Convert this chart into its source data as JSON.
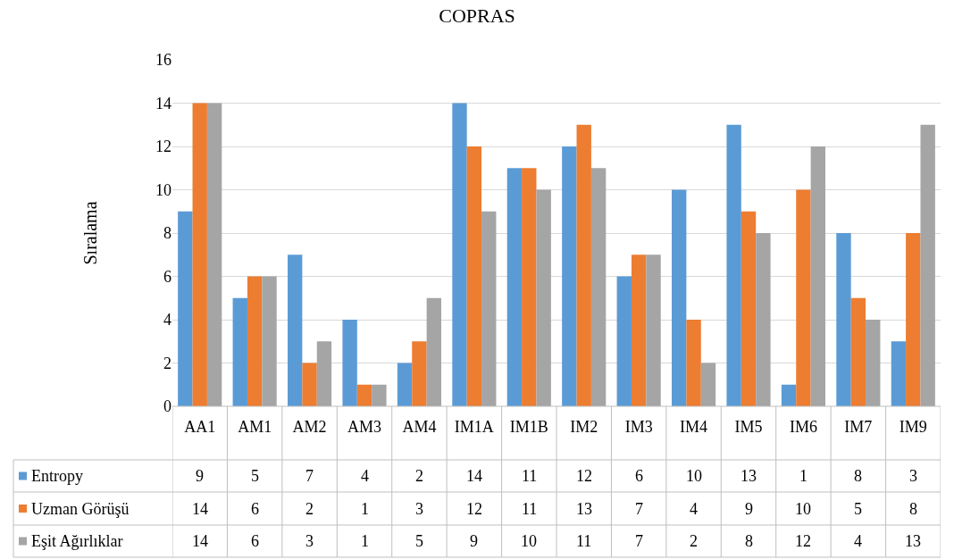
{
  "chart_data": {
    "type": "bar",
    "title": "COPRAS",
    "ylabel": "Sıralama",
    "categories": [
      "AA1",
      "AM1",
      "AM2",
      "AM3",
      "AM4",
      "IM1A",
      "IM1B",
      "IM2",
      "IM3",
      "IM4",
      "IM5",
      "IM6",
      "IM7",
      "IM9"
    ],
    "series": [
      {
        "name": "Entropy",
        "color": "#5b9bd5",
        "values": [
          9,
          5,
          7,
          4,
          2,
          14,
          11,
          12,
          6,
          10,
          13,
          1,
          8,
          3
        ]
      },
      {
        "name": "Uzman Görüşü",
        "color": "#ed7d31",
        "values": [
          14,
          6,
          2,
          1,
          3,
          12,
          11,
          13,
          7,
          4,
          9,
          10,
          5,
          8
        ]
      },
      {
        "name": "Eşit Ağırlıklar",
        "color": "#a5a5a5",
        "values": [
          14,
          6,
          3,
          1,
          5,
          9,
          10,
          11,
          7,
          2,
          8,
          12,
          4,
          13
        ]
      }
    ],
    "ylim": [
      0,
      16
    ],
    "yticks": [
      0,
      2,
      4,
      6,
      8,
      10,
      12,
      14,
      16
    ],
    "grid": "y",
    "legend": "bottom",
    "data_labels": true
  }
}
